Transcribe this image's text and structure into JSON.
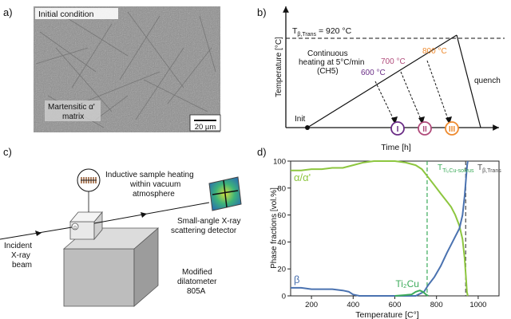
{
  "panels": {
    "a": {
      "label": "a)",
      "caption_top": "Initial condition",
      "caption_bottom_line1": "Martensitic α'",
      "caption_bottom_line2": "matrix",
      "scale_bar": "20 µm"
    },
    "b": {
      "label": "b)",
      "ylabel": "Temperature [°C]",
      "xlabel": "Time [h]",
      "t_beta_prefix": "T",
      "t_beta_sub": "β,Trans",
      "t_beta_value": " = 920 °C",
      "heating_line1": "Continuous",
      "heating_line2": "heating at 5°C/min",
      "heating_line3": "(CH5)",
      "temp_800": "800 °C",
      "temp_700": "700 °C",
      "temp_600": "600 °C",
      "init_label": "Init",
      "quench_label": "quench",
      "markers": [
        "I",
        "II",
        "III"
      ],
      "colors": {
        "c600": "#6a2d86",
        "c700": "#b04a7a",
        "c800": "#ee8a2e"
      }
    },
    "c": {
      "label": "c)",
      "heating_line1": "Inductive sample heating",
      "heating_line2": "within vacuum",
      "heating_line3": "atmosphere",
      "detector_line1": "Small-angle X-ray",
      "detector_line2": "scattering detector",
      "beam_line1": "Incident",
      "beam_line2": "X-ray",
      "beam_line3": "beam",
      "dil_line1": "Modified",
      "dil_line2": "dilatometer",
      "dil_line3": "805A"
    },
    "d": {
      "label": "d)",
      "solvus_prefix": "T",
      "solvus_sub": "Ti₂Cu-solvus",
      "trans_prefix": "T",
      "trans_sub": "β,Trans",
      "colors": {
        "alpha": "#8dc63f",
        "beta": "#4a72b0",
        "ti2cu": "#3cab5a",
        "solvus": "#3cab5a",
        "trans": "#4a4a4a"
      }
    }
  },
  "chart_data": {
    "type": "line",
    "title": "",
    "xlabel": "Temperature [C°]",
    "ylabel": "Phase fractions [vol.%]",
    "xlim": [
      100,
      1100
    ],
    "ylim": [
      0,
      100
    ],
    "xticks": [
      200,
      400,
      600,
      800,
      1000
    ],
    "yticks": [
      0,
      20,
      40,
      60,
      80,
      100
    ],
    "vlines": [
      {
        "x": 755,
        "style": "dashed",
        "color": "#3cab5a"
      },
      {
        "x": 940,
        "style": "dashed",
        "color": "#4a4a4a"
      }
    ],
    "series": [
      {
        "name": "α/α'",
        "color": "#8dc63f",
        "points": [
          [
            100,
            93
          ],
          [
            150,
            93
          ],
          [
            200,
            94
          ],
          [
            250,
            94
          ],
          [
            300,
            95
          ],
          [
            350,
            95
          ],
          [
            400,
            97
          ],
          [
            450,
            99
          ],
          [
            500,
            100
          ],
          [
            550,
            100
          ],
          [
            600,
            100
          ],
          [
            650,
            99
          ],
          [
            700,
            97
          ],
          [
            730,
            94
          ],
          [
            760,
            88
          ],
          [
            790,
            82
          ],
          [
            820,
            76
          ],
          [
            850,
            70
          ],
          [
            870,
            66
          ],
          [
            890,
            60
          ],
          [
            910,
            52
          ],
          [
            925,
            42
          ],
          [
            935,
            28
          ],
          [
            942,
            12
          ],
          [
            946,
            3
          ],
          [
            950,
            0
          ]
        ]
      },
      {
        "name": "β",
        "color": "#4a72b0",
        "points": [
          [
            100,
            6
          ],
          [
            150,
            6
          ],
          [
            200,
            5
          ],
          [
            250,
            5
          ],
          [
            300,
            5
          ],
          [
            350,
            4
          ],
          [
            380,
            3
          ],
          [
            400,
            1
          ],
          [
            430,
            0
          ],
          [
            700,
            0
          ],
          [
            740,
            3
          ],
          [
            760,
            8
          ],
          [
            790,
            14
          ],
          [
            820,
            22
          ],
          [
            850,
            32
          ],
          [
            870,
            38
          ],
          [
            890,
            44
          ],
          [
            910,
            50
          ],
          [
            925,
            60
          ],
          [
            935,
            74
          ],
          [
            942,
            88
          ],
          [
            947,
            97
          ],
          [
            950,
            100
          ]
        ]
      },
      {
        "name": "Ti₂Cu",
        "color": "#3cab5a",
        "points": [
          [
            600,
            0
          ],
          [
            680,
            1
          ],
          [
            700,
            3
          ],
          [
            720,
            4
          ],
          [
            735,
            3
          ],
          [
            750,
            1
          ],
          [
            760,
            0
          ]
        ]
      }
    ]
  }
}
